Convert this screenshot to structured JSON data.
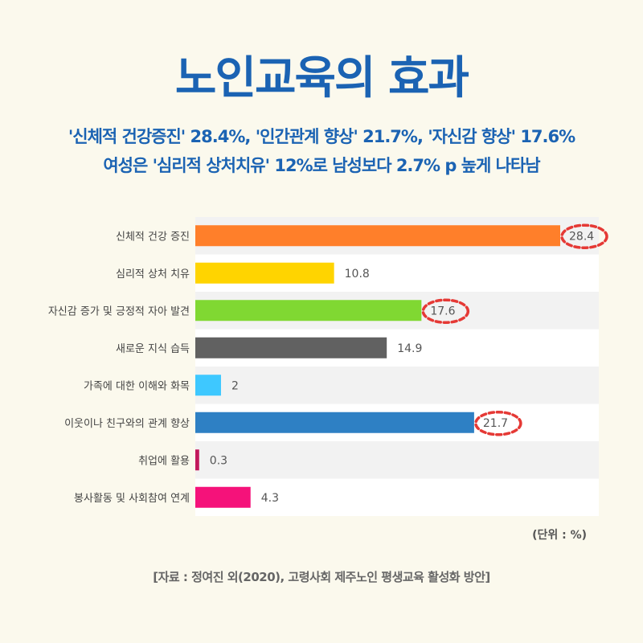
{
  "title": "노인교육의 효과",
  "subtitle_line1": "'신체적 건강증진' 28.4%, '인간관계 향상' 21.7%, '자신감 향상' 17.6%",
  "subtitle_line2": "여성은 '심리적 상처치유' 12%로 남성보다 2.7% p 높게 나타남",
  "unit_label": "(단위 : %)",
  "source": "[자료 : 정여진 외(2020), 고령사회 제주노인 평생교육 활성화 방안]",
  "chart_data": {
    "type": "bar",
    "orientation": "horizontal",
    "categories": [
      "신체적 건강 증진",
      "심리적 상처 치유",
      "자신감 증가 및 긍정적 자아 발견",
      "새로운 지식 습득",
      "가족에 대한 이해와 화목",
      "이웃이나 친구와의 관계 향상",
      "취업에 활용",
      "봉사활동 및 사회참여 연계"
    ],
    "values": [
      28.4,
      10.8,
      17.6,
      14.9,
      2,
      21.7,
      0.3,
      4.3
    ],
    "value_labels": [
      "28.4",
      "10.8",
      "17.6",
      "14.9",
      "2",
      "21.7",
      "0.3",
      "4.3"
    ],
    "colors": [
      "#ff7f2a",
      "#ffd400",
      "#80d832",
      "#616161",
      "#3ec8ff",
      "#2e80c4",
      "#c2185b",
      "#f5127a"
    ],
    "highlighted": [
      0,
      2,
      5
    ],
    "xlim": [
      0,
      30
    ],
    "grid": false,
    "legend": "none"
  }
}
